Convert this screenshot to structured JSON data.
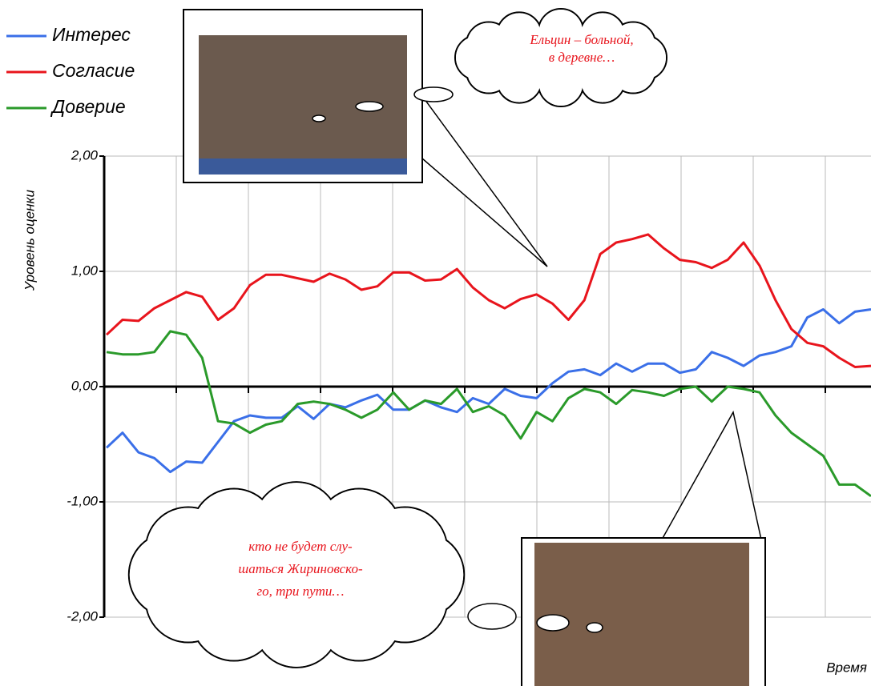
{
  "chart_data": {
    "type": "line",
    "y_label": "Уровень оценки",
    "x_label": "Время",
    "ylim": [
      -2,
      2
    ],
    "yticks": [
      {
        "value": 2,
        "label": "2,00"
      },
      {
        "value": 1,
        "label": "1,00"
      },
      {
        "value": 0,
        "label": "0,00"
      },
      {
        "value": -1,
        "label": "-1,00"
      },
      {
        "value": -2,
        "label": "-2,00"
      }
    ],
    "grid": true,
    "legend": "top-left",
    "series": [
      {
        "name": "Интерес",
        "color": "#3a6fe8",
        "values": [
          -0.53,
          -0.4,
          -0.57,
          -0.62,
          -0.74,
          -0.65,
          -0.66,
          -0.48,
          -0.3,
          -0.25,
          -0.27,
          -0.27,
          -0.17,
          -0.28,
          -0.15,
          -0.18,
          -0.12,
          -0.07,
          -0.2,
          -0.2,
          -0.12,
          -0.18,
          -0.22,
          -0.1,
          -0.15,
          -0.02,
          -0.08,
          -0.1,
          0.03,
          0.13,
          0.15,
          0.1,
          0.2,
          0.13,
          0.2,
          0.2,
          0.12,
          0.15,
          0.3,
          0.25,
          0.18,
          0.27,
          0.3,
          0.35,
          0.6,
          0.67,
          0.55,
          0.65,
          0.67
        ]
      },
      {
        "name": "Согласие",
        "color": "#e8141c",
        "values": [
          0.45,
          0.58,
          0.57,
          0.68,
          0.75,
          0.82,
          0.78,
          0.58,
          0.68,
          0.88,
          0.97,
          0.97,
          0.94,
          0.91,
          0.98,
          0.93,
          0.84,
          0.87,
          0.99,
          0.99,
          0.92,
          0.93,
          1.02,
          0.86,
          0.75,
          0.68,
          0.76,
          0.8,
          0.72,
          0.58,
          0.75,
          1.15,
          1.25,
          1.28,
          1.32,
          1.2,
          1.1,
          1.08,
          1.03,
          1.1,
          1.25,
          1.05,
          0.75,
          0.5,
          0.38,
          0.35,
          0.25,
          0.17,
          0.18
        ]
      },
      {
        "name": "Доверие",
        "color": "#2a9a2a",
        "values": [
          0.3,
          0.28,
          0.28,
          0.3,
          0.48,
          0.45,
          0.25,
          -0.3,
          -0.32,
          -0.4,
          -0.33,
          -0.3,
          -0.15,
          -0.13,
          -0.15,
          -0.2,
          -0.27,
          -0.2,
          -0.05,
          -0.2,
          -0.12,
          -0.15,
          -0.02,
          -0.22,
          -0.17,
          -0.25,
          -0.45,
          -0.22,
          -0.3,
          -0.1,
          -0.02,
          -0.05,
          -0.15,
          -0.03,
          -0.05,
          -0.08,
          -0.02,
          0.0,
          -0.13,
          0.0,
          -0.02,
          -0.05,
          -0.25,
          -0.4,
          -0.5,
          -0.6,
          -0.85,
          -0.85,
          -0.95
        ]
      }
    ],
    "annotations": [
      {
        "lines": [
          "Ельцин – больной,",
          "в деревне…"
        ]
      },
      {
        "lines": [
          "кто не будет слу-",
          "шаться Жириновско-",
          "го, три пути…"
        ]
      }
    ]
  }
}
